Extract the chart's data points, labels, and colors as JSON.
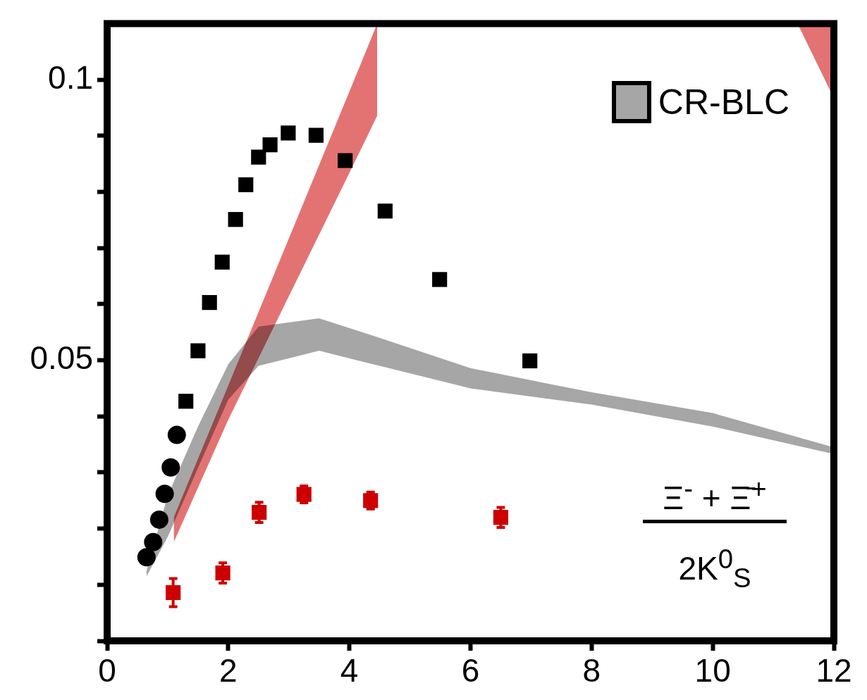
{
  "chart_data": {
    "type": "scatter",
    "xlim": [
      0,
      12
    ],
    "xticks": [
      0,
      2,
      4,
      6,
      8,
      10,
      12
    ],
    "ylim": [
      0,
      0.11
    ],
    "yticks": [
      {
        "value": 0,
        "label": null
      },
      {
        "value": 0.01,
        "label": null
      },
      {
        "value": 0.02,
        "label": null
      },
      {
        "value": 0.03,
        "label": null
      },
      {
        "value": 0.04,
        "label": null
      },
      0.05,
      {
        "value": 0.06,
        "label": null
      },
      {
        "value": 0.07,
        "label": null
      },
      {
        "value": 0.08,
        "label": null
      },
      {
        "value": 0.09,
        "label": null
      },
      0.1
    ],
    "grid": false,
    "legend": "top right",
    "annotations": [
      "Ξ$^{-}$ + Ξ̄$^{+}$",
      "2K$^{0}$$_{S}$"
    ],
    "series": [
      {
        "marker": "circle",
        "color": "#000000",
        "x": [
          0.65,
          0.76,
          0.86,
          0.95,
          1.05,
          1.15
        ],
        "values": [
          0.0149,
          0.0176,
          0.0216,
          0.0262,
          0.0309,
          0.0367
        ]
      },
      {
        "marker": "square",
        "color": "#000000",
        "x": [
          1.3,
          1.5,
          1.69,
          1.9,
          2.12,
          2.29,
          2.5,
          2.69,
          2.99,
          3.45,
          3.93,
          4.59,
          5.49,
          6.98
        ],
        "values": [
          0.0427,
          0.0517,
          0.0603,
          0.0675,
          0.0751,
          0.0813,
          0.0862,
          0.0884,
          0.0905,
          0.0901,
          0.0856,
          0.0766,
          0.0644,
          0.0499
        ]
      },
      {
        "marker": "square",
        "color": "#cc0000",
        "x": [
          1.09,
          1.91,
          2.51,
          3.25,
          4.35,
          6.5
        ],
        "values": [
          0.0086,
          0.0121,
          0.0229,
          0.0261,
          0.025,
          0.022
        ],
        "errors": [
          0.0025,
          0.0018,
          0.0018,
          0.0015,
          0.0015,
          0.0018
        ]
      },
      {
        "type": "area",
        "name": "CR-BLC",
        "color": "#000000",
        "x": [
          0.65,
          1,
          1.5,
          2,
          2.5,
          3.5,
          4.5,
          6,
          8,
          10,
          12
        ],
        "values": [
          null,
          null,
          null,
          null,
          null,
          null,
          null,
          null,
          null,
          null,
          null
        ],
        "lower": [
          0.0115,
          0.0185,
          0.0308,
          0.043,
          0.049,
          0.0517,
          0.049,
          0.045,
          0.0421,
          0.0382,
          0.0333
        ],
        "upper": [
          0.0125,
          0.0259,
          0.0382,
          0.0493,
          0.056,
          0.0575,
          0.054,
          0.0486,
          0.0443,
          0.0406,
          0.0345
        ]
      },
      {
        "type": "area",
        "color": "#cc0000",
        "x": [
          1.1,
          2,
          3,
          4,
          4.46
        ],
        "values": [
          null,
          null,
          null,
          null,
          null
        ],
        "lower": [
          0.0176,
          0.0394,
          0.0614,
          0.0834,
          0.0936
        ],
        "upper": [
          0.022,
          0.0455,
          0.0717,
          0.0979,
          0.11
        ]
      },
      {
        "type": "area",
        "color": "#cc0000",
        "x": [
          11.4,
          12
        ],
        "values": [
          null,
          null
        ],
        "lower": [
          0.11,
          0.0967
        ],
        "upper": [
          0.11,
          0.11
        ]
      }
    ]
  }
}
